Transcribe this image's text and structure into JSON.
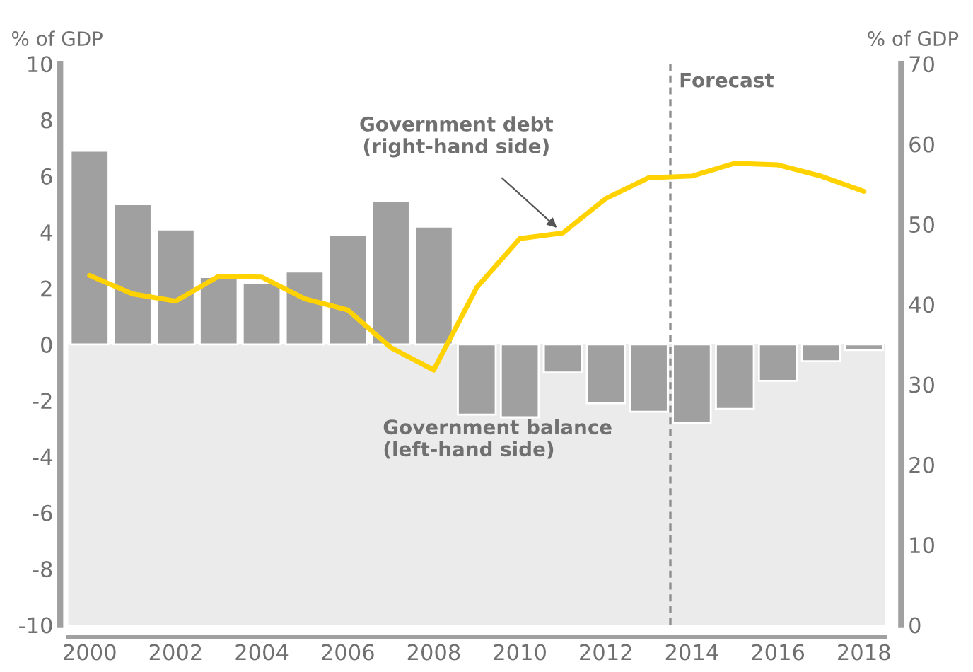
{
  "chart_data": {
    "type": "bar",
    "ylabel": "% of GDP",
    "y2label": "% of GDP",
    "x": [
      2000,
      2001,
      2002,
      2003,
      2004,
      2005,
      2006,
      2007,
      2008,
      2009,
      2010,
      2011,
      2012,
      2013,
      2014,
      2015,
      2016,
      2017,
      2018
    ],
    "series": [
      {
        "color": "#a0a0a0",
        "values": [
          6.9,
          5.0,
          4.1,
          2.4,
          2.2,
          2.6,
          3.9,
          5.1,
          4.2,
          -2.5,
          -2.6,
          -1.0,
          -2.1,
          -2.4,
          -2.8,
          -2.3,
          -1.3,
          -0.6,
          -0.2
        ]
      },
      {
        "type": "line",
        "axis": "y2",
        "color": "#ffd200",
        "values": [
          43.6,
          41.3,
          40.4,
          43.5,
          43.4,
          40.7,
          39.3,
          34.6,
          31.8,
          42.1,
          48.2,
          48.9,
          53.2,
          55.8,
          56.0,
          57.6,
          57.4,
          56.0,
          54.1
        ]
      }
    ],
    "xlim": [
      1999.5,
      2018.5
    ],
    "xticks": [
      2000,
      2002,
      2004,
      2006,
      2008,
      2010,
      2012,
      2014,
      2016,
      2018
    ],
    "ylim": [
      -10,
      10
    ],
    "yticks": [
      -10,
      -8,
      -6,
      -4,
      -2,
      0,
      2,
      4,
      6,
      8,
      10
    ],
    "y2lim": [
      0,
      70
    ],
    "y2ticks": [
      0,
      10,
      20,
      30,
      40,
      50,
      60,
      70
    ],
    "ref_lines": [
      {
        "axis": "x",
        "value": 2013.5,
        "label": "Forecast",
        "color": "#8c8c8c",
        "line_style": "dashed"
      }
    ],
    "bands": [
      {
        "axis": "y",
        "from": -10,
        "to": 0,
        "color": "#ebebeb"
      }
    ],
    "annotations": [
      {
        "text": "Government debt\n(right-hand side)",
        "x": 2011,
        "y": 3.97
      },
      "Government balance\n(left-hand side)"
    ],
    "grid": false
  }
}
